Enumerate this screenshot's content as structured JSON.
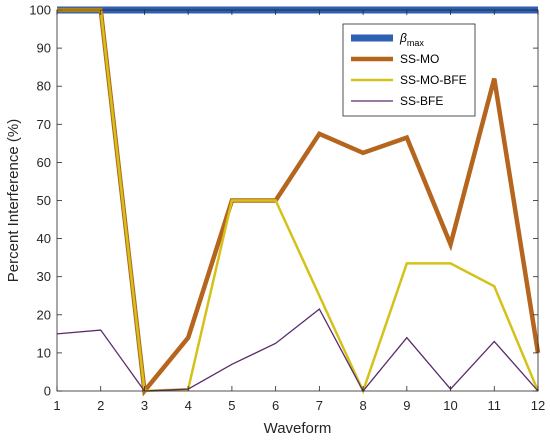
{
  "chart_data": {
    "type": "line",
    "title": "",
    "xlabel": "Waveform",
    "ylabel": "Percent Interference (%)",
    "x": [
      1,
      2,
      3,
      4,
      5,
      6,
      7,
      8,
      9,
      10,
      11,
      12
    ],
    "xlim": [
      1,
      12
    ],
    "ylim": [
      0,
      100
    ],
    "xticks": [
      "1",
      "2",
      "3",
      "4",
      "5",
      "6",
      "7",
      "8",
      "9",
      "10",
      "11",
      "12"
    ],
    "yticks": [
      "0",
      "10",
      "20",
      "30",
      "40",
      "50",
      "60",
      "70",
      "80",
      "90",
      "100"
    ],
    "grid": false,
    "legend_position": "top-right",
    "series": [
      {
        "name": "β",
        "name_sub": "max",
        "color": "#2f5fb3",
        "values": [
          100,
          100,
          100,
          100,
          100,
          100,
          100,
          100,
          100,
          100,
          100,
          100
        ]
      },
      {
        "name": "SS-MO",
        "color": "#b5651d",
        "values": [
          100,
          100,
          0,
          14,
          50,
          50,
          67.5,
          62.5,
          66.5,
          38.5,
          82,
          10
        ]
      },
      {
        "name": "SS-MO-BFE",
        "color": "#d4c21a",
        "values": [
          100,
          100,
          0,
          0.5,
          50,
          50,
          25,
          0,
          33.5,
          33.5,
          27.5,
          0
        ]
      },
      {
        "name": "SS-BFE",
        "color": "#5b2a6e",
        "values": [
          15,
          16,
          0,
          0.5,
          7,
          12.5,
          21.5,
          0,
          14,
          0.5,
          13,
          0
        ]
      }
    ]
  }
}
